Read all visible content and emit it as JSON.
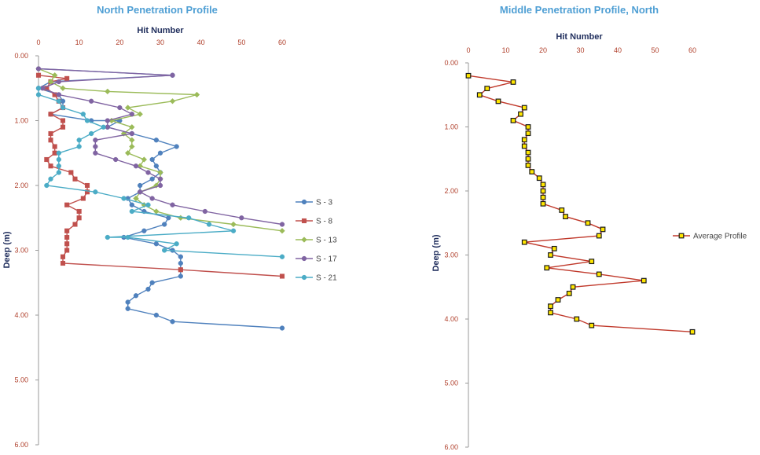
{
  "chart_data": [
    {
      "type": "line",
      "title": "North Penetration Profile",
      "xlabel": "Hit Number",
      "ylabel": "Deep (m)",
      "xlim": [
        0,
        60
      ],
      "ylim": [
        0,
        6
      ],
      "x_ticks": [
        "0",
        "10",
        "20",
        "30",
        "40",
        "50",
        "60"
      ],
      "y_ticks": [
        "0.00",
        "1.00",
        "2.00",
        "3.00",
        "4.00",
        "5.00",
        "6.00"
      ],
      "grid": false,
      "legend": "right",
      "series": [
        {
          "name": "S - 3",
          "color": "#4f81bd",
          "marker": "circle",
          "points": [
            [
              0,
              0.2
            ],
            [
              33,
              0.3
            ],
            [
              3,
              0.4
            ],
            [
              0,
              0.5
            ],
            [
              5,
              0.6
            ],
            [
              6,
              0.7
            ],
            [
              6,
              0.8
            ],
            [
              3,
              0.9
            ],
            [
              13,
              1.0
            ],
            [
              20,
              1.0
            ],
            [
              17,
              1.1
            ],
            [
              23,
              1.2
            ],
            [
              29,
              1.3
            ],
            [
              34,
              1.4
            ],
            [
              30,
              1.5
            ],
            [
              28,
              1.6
            ],
            [
              29,
              1.7
            ],
            [
              30,
              1.8
            ],
            [
              28,
              1.9
            ],
            [
              25,
              2.0
            ],
            [
              25,
              2.1
            ],
            [
              22,
              2.2
            ],
            [
              23,
              2.3
            ],
            [
              26,
              2.4
            ],
            [
              32,
              2.5
            ],
            [
              31,
              2.6
            ],
            [
              26,
              2.7
            ],
            [
              21,
              2.8
            ],
            [
              29,
              2.9
            ],
            [
              33,
              3.0
            ],
            [
              35,
              3.1
            ],
            [
              35,
              3.2
            ],
            [
              35,
              3.3
            ],
            [
              35,
              3.4
            ],
            [
              28,
              3.5
            ],
            [
              27,
              3.6
            ],
            [
              24,
              3.7
            ],
            [
              22,
              3.8
            ],
            [
              22,
              3.9
            ],
            [
              29,
              4.0
            ],
            [
              33,
              4.1
            ],
            [
              60,
              4.2
            ]
          ]
        },
        {
          "name": "S - 8",
          "color": "#c0504d",
          "marker": "square",
          "points": [
            [
              0,
              0.3
            ],
            [
              7,
              0.35
            ],
            [
              3,
              0.4
            ],
            [
              2,
              0.5
            ],
            [
              4,
              0.6
            ],
            [
              5,
              0.7
            ],
            [
              6,
              0.8
            ],
            [
              3,
              0.9
            ],
            [
              6,
              1.0
            ],
            [
              6,
              1.1
            ],
            [
              3,
              1.2
            ],
            [
              3,
              1.3
            ],
            [
              4,
              1.4
            ],
            [
              4,
              1.5
            ],
            [
              2,
              1.6
            ],
            [
              3,
              1.7
            ],
            [
              8,
              1.8
            ],
            [
              9,
              1.9
            ],
            [
              12,
              2.0
            ],
            [
              12,
              2.1
            ],
            [
              11,
              2.2
            ],
            [
              7,
              2.3
            ],
            [
              10,
              2.4
            ],
            [
              10,
              2.5
            ],
            [
              9,
              2.6
            ],
            [
              7,
              2.7
            ],
            [
              7,
              2.8
            ],
            [
              7,
              2.9
            ],
            [
              7,
              3.0
            ],
            [
              6,
              3.1
            ],
            [
              6,
              3.2
            ],
            [
              35,
              3.3
            ],
            [
              60,
              3.4
            ]
          ]
        },
        {
          "name": "S - 13",
          "color": "#9bbb59",
          "marker": "diamond",
          "points": [
            [
              0,
              0.2
            ],
            [
              4,
              0.3
            ],
            [
              3,
              0.4
            ],
            [
              6,
              0.5
            ],
            [
              17,
              0.55
            ],
            [
              39,
              0.6
            ],
            [
              33,
              0.7
            ],
            [
              22,
              0.8
            ],
            [
              25,
              0.9
            ],
            [
              18,
              1.0
            ],
            [
              23,
              1.1
            ],
            [
              21,
              1.2
            ],
            [
              23,
              1.3
            ],
            [
              23,
              1.4
            ],
            [
              22,
              1.5
            ],
            [
              26,
              1.6
            ],
            [
              25,
              1.7
            ],
            [
              30,
              1.8
            ],
            [
              30,
              1.9
            ],
            [
              29,
              2.0
            ],
            [
              25,
              2.1
            ],
            [
              24,
              2.2
            ],
            [
              26,
              2.3
            ],
            [
              29,
              2.4
            ],
            [
              35,
              2.5
            ],
            [
              48,
              2.6
            ],
            [
              60,
              2.7
            ]
          ]
        },
        {
          "name": "S - 17",
          "color": "#8064a2",
          "marker": "circle",
          "points": [
            [
              0,
              0.2
            ],
            [
              33,
              0.3
            ],
            [
              5,
              0.4
            ],
            [
              1,
              0.5
            ],
            [
              5,
              0.6
            ],
            [
              13,
              0.7
            ],
            [
              20,
              0.8
            ],
            [
              23,
              0.9
            ],
            [
              17,
              1.0
            ],
            [
              17,
              1.1
            ],
            [
              23,
              1.2
            ],
            [
              14,
              1.3
            ],
            [
              14,
              1.4
            ],
            [
              14,
              1.5
            ],
            [
              19,
              1.6
            ],
            [
              24,
              1.7
            ],
            [
              27,
              1.8
            ],
            [
              30,
              1.9
            ],
            [
              30,
              2.0
            ],
            [
              25,
              2.1
            ],
            [
              28,
              2.2
            ],
            [
              33,
              2.3
            ],
            [
              41,
              2.4
            ],
            [
              50,
              2.5
            ],
            [
              60,
              2.6
            ]
          ]
        },
        {
          "name": "S - 21",
          "color": "#4bacc6",
          "marker": "circle",
          "points": [
            [
              0,
              0.5
            ],
            [
              0,
              0.6
            ],
            [
              5,
              0.7
            ],
            [
              6,
              0.8
            ],
            [
              11,
              0.9
            ],
            [
              12,
              1.0
            ],
            [
              16,
              1.1
            ],
            [
              13,
              1.2
            ],
            [
              10,
              1.3
            ],
            [
              10,
              1.4
            ],
            [
              5,
              1.5
            ],
            [
              5,
              1.6
            ],
            [
              5,
              1.7
            ],
            [
              5,
              1.8
            ],
            [
              3,
              1.9
            ],
            [
              2,
              2.0
            ],
            [
              14,
              2.1
            ],
            [
              21,
              2.2
            ],
            [
              27,
              2.3
            ],
            [
              23,
              2.4
            ],
            [
              37,
              2.5
            ],
            [
              42,
              2.6
            ],
            [
              48,
              2.7
            ],
            [
              17,
              2.8
            ],
            [
              22,
              2.8
            ],
            [
              34,
              2.9
            ],
            [
              31,
              3.0
            ],
            [
              60,
              3.1
            ]
          ]
        }
      ]
    },
    {
      "type": "line",
      "title": "Middle Penetration Profile, North",
      "xlabel": "Hit Number",
      "ylabel": "Deep (m)",
      "xlim": [
        0,
        60
      ],
      "ylim": [
        0,
        6
      ],
      "x_ticks": [
        "0",
        "10",
        "20",
        "30",
        "40",
        "50",
        "60"
      ],
      "y_ticks": [
        "0.00",
        "1.00",
        "2.00",
        "3.00",
        "4.00",
        "5.00",
        "6.00"
      ],
      "grid": false,
      "legend": "right",
      "series": [
        {
          "name": "Average Profile",
          "color": "#c0392b",
          "marker_fill": "#ffe600",
          "marker_stroke": "#1a1a1a",
          "marker": "square",
          "points": [
            [
              0,
              0.2
            ],
            [
              12,
              0.3
            ],
            [
              5,
              0.4
            ],
            [
              3,
              0.5
            ],
            [
              8,
              0.6
            ],
            [
              15,
              0.7
            ],
            [
              14,
              0.8
            ],
            [
              12,
              0.9
            ],
            [
              16,
              1.0
            ],
            [
              16,
              1.1
            ],
            [
              15,
              1.2
            ],
            [
              15,
              1.3
            ],
            [
              16,
              1.4
            ],
            [
              16,
              1.5
            ],
            [
              16,
              1.6
            ],
            [
              17,
              1.7
            ],
            [
              19,
              1.8
            ],
            [
              20,
              1.9
            ],
            [
              20,
              2.0
            ],
            [
              20,
              2.1
            ],
            [
              20,
              2.2
            ],
            [
              25,
              2.3
            ],
            [
              26,
              2.4
            ],
            [
              32,
              2.5
            ],
            [
              36,
              2.6
            ],
            [
              35,
              2.7
            ],
            [
              15,
              2.8
            ],
            [
              23,
              2.9
            ],
            [
              22,
              3.0
            ],
            [
              33,
              3.1
            ],
            [
              21,
              3.2
            ],
            [
              35,
              3.3
            ],
            [
              47,
              3.4
            ],
            [
              28,
              3.5
            ],
            [
              27,
              3.6
            ],
            [
              24,
              3.7
            ],
            [
              22,
              3.8
            ],
            [
              22,
              3.9
            ],
            [
              29,
              4.0
            ],
            [
              33,
              4.1
            ],
            [
              60,
              4.2
            ]
          ]
        }
      ]
    }
  ]
}
